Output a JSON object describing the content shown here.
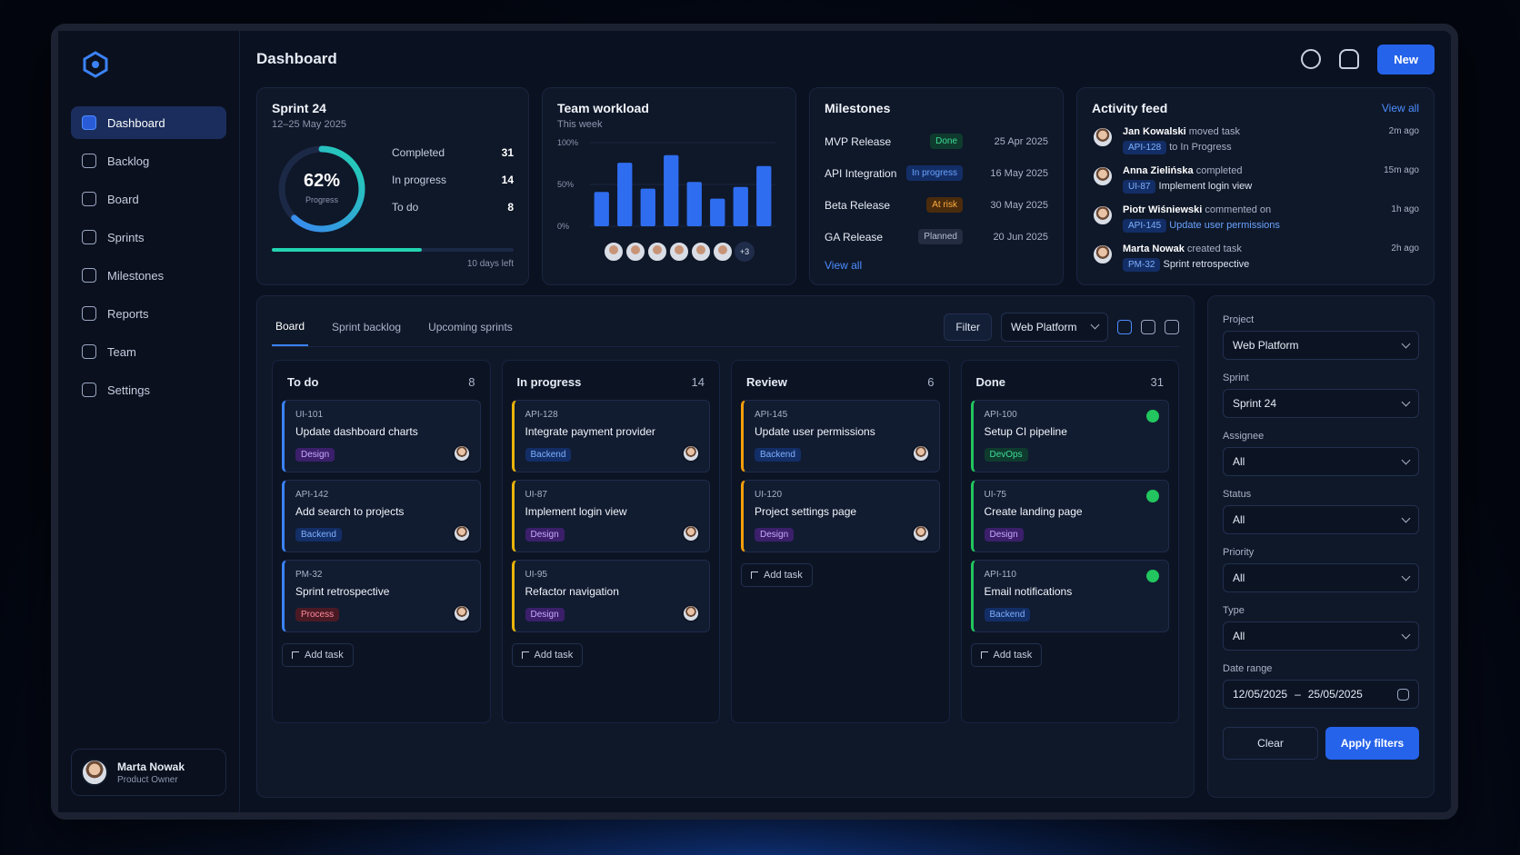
{
  "sidebar": {
    "nav": [
      "Dashboard",
      "Backlog",
      "Board",
      "Sprints",
      "Milestones",
      "Reports",
      "Team",
      "Settings"
    ],
    "user": {
      "name": "Marta Nowak",
      "role": "Product Owner"
    }
  },
  "header": {
    "title": "Dashboard",
    "new_button": "New"
  },
  "sprint": {
    "title": "Sprint 24",
    "dates": "12–25 May 2025",
    "progress": {
      "value": 62,
      "label": "62%"
    },
    "progress_caption": "Progress",
    "stats": [
      {
        "label": "Completed",
        "value": 31
      },
      {
        "label": "In progress",
        "value": 14
      },
      {
        "label": "To do",
        "value": 8
      }
    ],
    "days_left": "10 days left"
  },
  "workload": {
    "title": "Team workload",
    "subtitle": "This week",
    "ylim": [
      0,
      100
    ],
    "yticks": [
      {
        "value": 0,
        "label": "0%"
      },
      {
        "value": 50,
        "label": "50%"
      },
      {
        "value": 100,
        "label": "100%"
      }
    ],
    "values": [
      41,
      76,
      45,
      85,
      53,
      33,
      47,
      72
    ],
    "avatars_more": "+3"
  },
  "milestones": {
    "title": "Milestones",
    "items": [
      {
        "name": "MVP Release",
        "status": "Done",
        "date": "25 Apr 2025"
      },
      {
        "name": "API Integration",
        "status": "In progress",
        "date": "16 May 2025"
      },
      {
        "name": "Beta Release",
        "status": "At risk",
        "date": "30 May 2025"
      },
      {
        "name": "GA Release",
        "status": "Planned",
        "date": "20 Jun 2025"
      }
    ],
    "view_all": "View all"
  },
  "activity": {
    "title": "Activity feed",
    "view_all": "View all",
    "items": [
      {
        "user": "Jan Kowalski",
        "action": "moved task",
        "tag": "API-128",
        "target": "to In Progress",
        "time": "2m ago"
      },
      {
        "user": "Anna Zielińska",
        "action": "completed",
        "tag": "UI-87",
        "target": "Implement login view",
        "time": "15m ago"
      },
      {
        "user": "Piotr Wiśniewski",
        "action": "commented on",
        "tag": "API-145",
        "target": "Update user permissions",
        "time": "1h ago"
      },
      {
        "user": "Marta Nowak",
        "action": "created task",
        "tag": "PM-32",
        "target": "Sprint retrospective",
        "time": "2h ago"
      }
    ]
  },
  "board": {
    "tabs": [
      "Board",
      "Sprint backlog",
      "Upcoming sprints"
    ],
    "filter": "Filter",
    "project_select": "Web Platform",
    "add_task": "Add task",
    "columns": [
      {
        "title": "To do",
        "count": 8,
        "cards": [
          {
            "id": "UI-101",
            "title": "Update dashboard charts",
            "tag": "Design"
          },
          {
            "id": "API-142",
            "title": "Add search to projects",
            "tag": "Backend"
          },
          {
            "id": "PM-32",
            "title": "Sprint retrospective",
            "tag": "Process"
          }
        ]
      },
      {
        "title": "In progress",
        "count": 14,
        "cards": [
          {
            "id": "API-128",
            "title": "Integrate payment provider",
            "tag": "Backend"
          },
          {
            "id": "UI-87",
            "title": "Implement login view",
            "tag": "Design"
          },
          {
            "id": "UI-95",
            "title": "Refactor navigation",
            "tag": "Design"
          }
        ]
      },
      {
        "title": "Review",
        "count": 6,
        "cards": [
          {
            "id": "API-145",
            "title": "Update user permissions",
            "tag": "Backend"
          },
          {
            "id": "UI-120",
            "title": "Project settings page",
            "tag": "Design"
          }
        ]
      },
      {
        "title": "Done",
        "count": 31,
        "cards": [
          {
            "id": "API-100",
            "title": "Setup CI pipeline",
            "tag": "DevOps"
          },
          {
            "id": "UI-75",
            "title": "Create landing page",
            "tag": "Design"
          },
          {
            "id": "API-110",
            "title": "Email notifications",
            "tag": "Backend"
          }
        ]
      }
    ]
  },
  "filters": {
    "fields": [
      {
        "label": "Project",
        "value": "Web Platform"
      },
      {
        "label": "Sprint",
        "value": "Sprint 24"
      },
      {
        "label": "Assignee",
        "value": "All"
      },
      {
        "label": "Status",
        "value": "All"
      },
      {
        "label": "Priority",
        "value": "All"
      },
      {
        "label": "Type",
        "value": "All"
      }
    ],
    "date_range": {
      "label": "Date range",
      "from": "12/05/2025",
      "separator": "–",
      "to": "25/05/2025"
    },
    "clear": "Clear",
    "apply": "Apply filters"
  }
}
